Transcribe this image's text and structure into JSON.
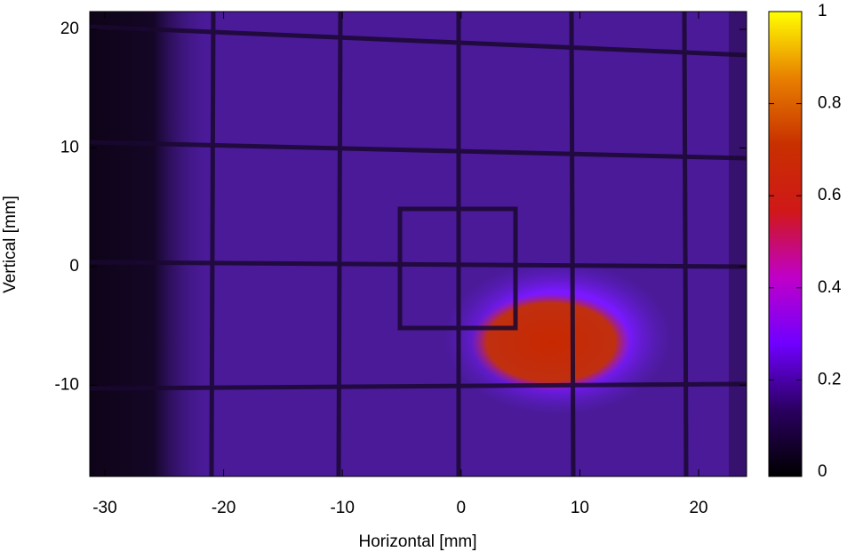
{
  "chart_data": {
    "type": "heatmap",
    "x_label": "Horizontal [mm]",
    "y_label": "Vertical [mm]",
    "xlim": [
      -31.27,
      24.04
    ],
    "xticks": [
      -30,
      -20,
      -10,
      0,
      10,
      20
    ],
    "ylim": [
      -17.7,
      21.5
    ],
    "yticks": [
      -10,
      0,
      10,
      20
    ],
    "colorbar": {
      "clim": [
        0,
        1
      ],
      "ticks": [
        0,
        0.2,
        0.4,
        0.6,
        0.8,
        1
      ],
      "colors": [
        "#000000",
        "#2a0060",
        "#7000ff",
        "#c000c8",
        "#d01818",
        "#c83000",
        "#e88000",
        "#ffff00"
      ]
    }
  }
}
